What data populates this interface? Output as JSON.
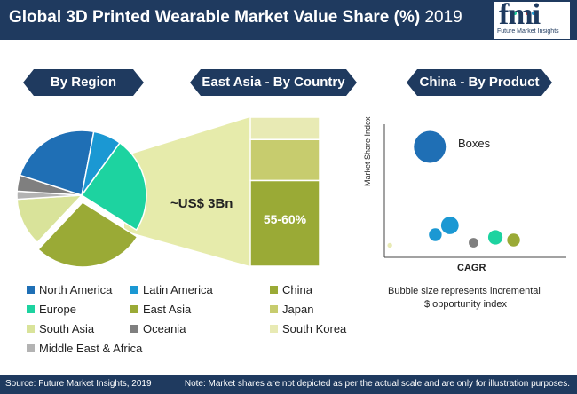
{
  "header": {
    "title": "Global 3D Printed Wearable Market Value Share (%)",
    "year": "2019",
    "logo": "fmi",
    "logo_sub": "Future Market Insights"
  },
  "banners": {
    "region": "By Region",
    "country": "East Asia - By Country",
    "product": "China - By Product"
  },
  "colors": {
    "navy": "#1f3a5f",
    "north_america": "#1f6fb5",
    "latin_america": "#1b98d3",
    "europe": "#1dd3a0",
    "east_asia": "#9aaa36",
    "south_asia": "#d9e39a",
    "oceania": "#7f7f7f",
    "middle_east_africa": "#b3b3b3",
    "china": "#9aaa36",
    "japan": "#c7cc6e",
    "south_korea": "#e8eab4"
  },
  "chart_data": [
    {
      "type": "pie",
      "title": "By Region",
      "series": [
        {
          "name": "Europe",
          "value": 24,
          "color": "#1dd3a0"
        },
        {
          "name": "East Asia",
          "value": 28,
          "color": "#9aaa36"
        },
        {
          "name": "South Asia",
          "value": 12,
          "color": "#d9e39a"
        },
        {
          "name": "Middle East & Africa",
          "value": 2,
          "color": "#b3b3b3"
        },
        {
          "name": "Oceania",
          "value": 4,
          "color": "#7f7f7f"
        },
        {
          "name": "North America",
          "value": 23,
          "color": "#1f6fb5"
        },
        {
          "name": "Latin America",
          "value": 7,
          "color": "#1b98d3"
        }
      ],
      "callout": "~US$ 3Bn"
    },
    {
      "type": "bar",
      "title": "East Asia - By Country",
      "stacked": true,
      "series": [
        {
          "name": "China",
          "value": 57.5,
          "color": "#9aaa36"
        },
        {
          "name": "Japan",
          "value": 27.5,
          "color": "#c7cc6e"
        },
        {
          "name": "South Korea",
          "value": 15,
          "color": "#e8eab4"
        }
      ],
      "label": "55-60%"
    },
    {
      "type": "scatter",
      "title": "China - By Product",
      "xlabel": "CAGR",
      "ylabel": "Market Share Index",
      "xlim": [
        0,
        10
      ],
      "ylim": [
        0,
        10
      ],
      "points": [
        {
          "label": "Boxes",
          "x": 2.5,
          "y": 8.3,
          "size": 10,
          "color": "#1f6fb5"
        },
        {
          "label": "",
          "x": 3.6,
          "y": 2.4,
          "size": 5.5,
          "color": "#1b98d3"
        },
        {
          "label": "",
          "x": 2.8,
          "y": 1.7,
          "size": 4,
          "color": "#1b98d3"
        },
        {
          "label": "",
          "x": 4.9,
          "y": 1.1,
          "size": 3,
          "color": "#7f7f7f"
        },
        {
          "label": "",
          "x": 6.1,
          "y": 1.5,
          "size": 4.5,
          "color": "#1dd3a0"
        },
        {
          "label": "",
          "x": 7.1,
          "y": 1.3,
          "size": 4,
          "color": "#9aaa36"
        },
        {
          "label": "",
          "x": 0.3,
          "y": 0.9,
          "size": 1.5,
          "color": "#e8eab4"
        }
      ],
      "note": "Bubble size represents incremental $ opportunity index"
    }
  ],
  "legend": [
    {
      "label": "North America",
      "color": "#1f6fb5"
    },
    {
      "label": "Latin America",
      "color": "#1b98d3"
    },
    {
      "label": "China",
      "color": "#9aaa36"
    },
    {
      "label": "Europe",
      "color": "#1dd3a0"
    },
    {
      "label": "East Asia",
      "color": "#9aaa36"
    },
    {
      "label": "Japan",
      "color": "#c7cc6e"
    },
    {
      "label": "South Asia",
      "color": "#d9e39a"
    },
    {
      "label": "Oceania",
      "color": "#7f7f7f"
    },
    {
      "label": "South Korea",
      "color": "#e8eab4"
    },
    {
      "label": "Middle East & Africa",
      "color": "#b3b3b3"
    }
  ],
  "bubble_note_line1": "Bubble size represents incremental",
  "bubble_note_line2": "$ opportunity index",
  "footer": {
    "source": "Source: Future Market Insights, 2019",
    "note": "Note: Market shares are not depicted as per the actual scale and are only for illustration purposes."
  }
}
